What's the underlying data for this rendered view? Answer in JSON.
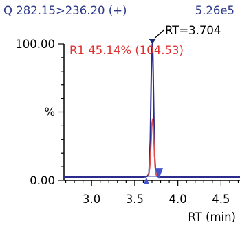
{
  "chart_data": {
    "type": "line",
    "header": {
      "transition": "Q 282.15>236.20 (+)",
      "intensity": "5.26e5"
    },
    "peak_label": "RT=3.704",
    "peak_annotation": "R1 45.14% (104.53)",
    "xlabel": "RT (min)",
    "ylabel": "%",
    "xlim": [
      2.68,
      4.72
    ],
    "ylim": [
      0,
      100
    ],
    "xticks": [
      {
        "value": 3.0,
        "label": "3.0"
      },
      {
        "value": 3.5,
        "label": "3.5"
      },
      {
        "value": 4.0,
        "label": "4.0"
      },
      {
        "value": 4.5,
        "label": "4.5"
      }
    ],
    "yticks": [
      {
        "value": 0,
        "label": "0.00"
      },
      {
        "value": 100,
        "label": "100.00"
      }
    ],
    "ymid_label_value": 50,
    "series": [
      {
        "color": "#2b2b8c",
        "x": [
          2.68,
          3.6,
          3.63,
          3.65,
          3.665,
          3.68,
          3.69,
          3.697,
          3.704,
          3.71,
          3.72,
          3.73,
          3.745,
          3.76,
          3.78,
          4.72
        ],
        "y": [
          2.5,
          2.5,
          2.7,
          3.3,
          5.5,
          30,
          70,
          95,
          100,
          92,
          55,
          18,
          5,
          3,
          2.5,
          2.5
        ]
      },
      {
        "color": "#e05050",
        "x": [
          3.66,
          3.675,
          3.69,
          3.7,
          3.707,
          3.715,
          3.725,
          3.735,
          3.75,
          3.765
        ],
        "y": [
          3,
          10,
          28,
          42,
          45,
          40,
          25,
          10,
          4,
          3
        ]
      }
    ],
    "baseline": {
      "color": "#8080c0",
      "y": 3.0
    },
    "markers": {
      "start_x": 3.635,
      "end_x": 3.78
    },
    "colors": {
      "axis": "#000000",
      "blue_text": "#2d3a8c",
      "red_text": "#e03030",
      "marker": "#4455cc"
    }
  }
}
